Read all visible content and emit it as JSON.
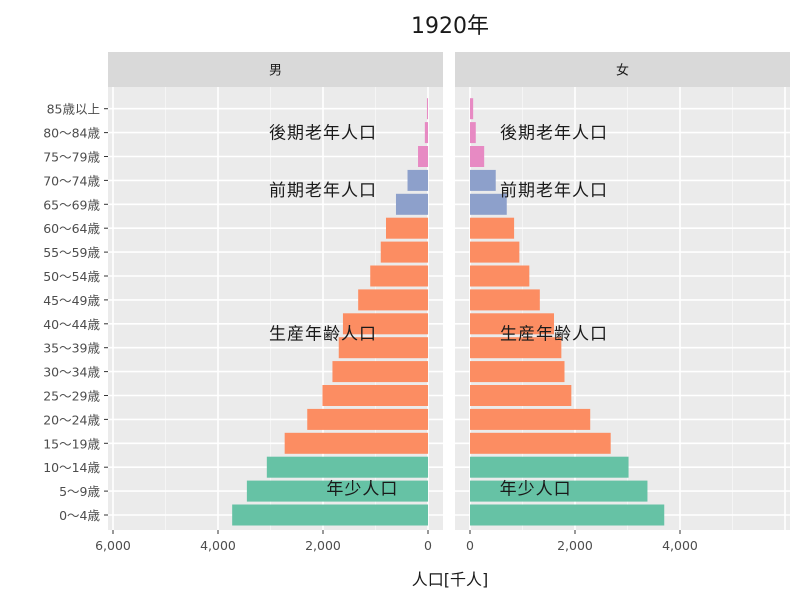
{
  "chart_data": {
    "type": "bar",
    "orientation": "horizontal",
    "title": "1920年",
    "xlabel": "人口[千人]",
    "ylabel": "",
    "categories": [
      "0～4歳",
      "5～9歳",
      "10～14歳",
      "15～19歳",
      "20～24歳",
      "25～29歳",
      "30～34歳",
      "35～39歳",
      "40～44歳",
      "45～49歳",
      "50～54歳",
      "55～59歳",
      "60～64歳",
      "65～69歳",
      "70～74歳",
      "75～79歳",
      "80～84歳",
      "85歳以上"
    ],
    "facets": [
      {
        "label": "男",
        "xlim": [
          6000,
          0
        ],
        "x_ticks": [
          "6,000",
          "4,000",
          "2,000",
          "0"
        ],
        "tick_values": [
          6000,
          4000,
          2000,
          0
        ],
        "values": [
          3730,
          3450,
          3070,
          2730,
          2300,
          2010,
          1820,
          1700,
          1620,
          1330,
          1100,
          900,
          800,
          610,
          390,
          190,
          60,
          20
        ]
      },
      {
        "label": "女",
        "xlim": [
          0,
          6000
        ],
        "x_ticks": [
          "0",
          "2,000",
          "4,000"
        ],
        "tick_values": [
          0,
          2000,
          4000
        ],
        "values": [
          3700,
          3380,
          3020,
          2680,
          2290,
          1930,
          1800,
          1740,
          1600,
          1330,
          1130,
          940,
          840,
          700,
          490,
          270,
          110,
          60
        ]
      }
    ],
    "age_groups": [
      {
        "name": "年少人口",
        "color": "#66c2a5",
        "indices": [
          0,
          1,
          2
        ]
      },
      {
        "name": "生産年齢人口",
        "color": "#fc8d62",
        "indices": [
          3,
          4,
          5,
          6,
          7,
          8,
          9,
          10,
          11,
          12
        ]
      },
      {
        "name": "前期老年人口",
        "color": "#8da0cb",
        "indices": [
          13,
          14
        ]
      },
      {
        "name": "後期老年人口",
        "color": "#e78ac3",
        "indices": [
          15,
          16,
          17
        ]
      }
    ],
    "annotations": [
      {
        "facet": 0,
        "text": "後期老年人口",
        "x": 2000,
        "y_index": 16
      },
      {
        "facet": 0,
        "text": "前期老年人口",
        "x": 2000,
        "y_index": 13.6
      },
      {
        "facet": 0,
        "text": "生産年齢人口",
        "x": 2000,
        "y_index": 7.6
      },
      {
        "facet": 0,
        "text": "年少人口",
        "x": 1250,
        "y_index": 1.1
      },
      {
        "facet": 1,
        "text": "後期老年人口",
        "x": 1600,
        "y_index": 16
      },
      {
        "facet": 1,
        "text": "前期老年人口",
        "x": 1600,
        "y_index": 13.6
      },
      {
        "facet": 1,
        "text": "生産年齢人口",
        "x": 1600,
        "y_index": 7.6
      },
      {
        "facet": 1,
        "text": "年少人口",
        "x": 1250,
        "y_index": 1.1
      }
    ],
    "grid": true,
    "legend": "none"
  }
}
